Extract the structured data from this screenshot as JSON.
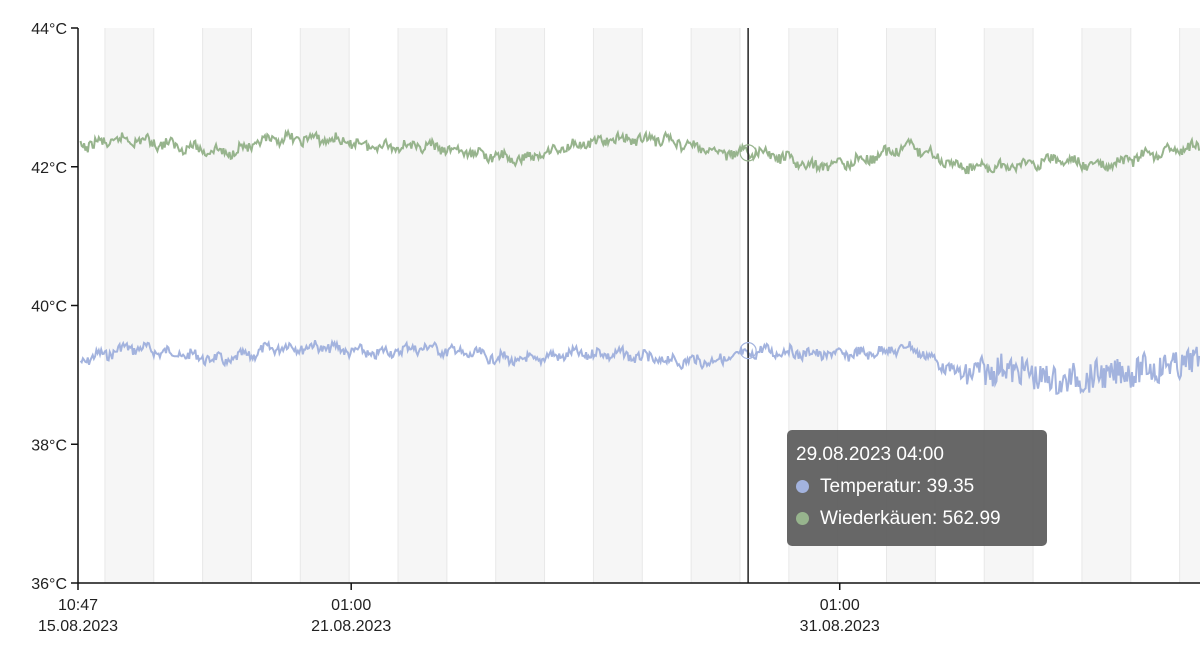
{
  "chart_data": {
    "type": "line",
    "y_unit": "°C",
    "ylim": [
      36,
      44
    ],
    "y_ticks": [
      "36°C",
      "38°C",
      "40°C",
      "42°C",
      "44°C"
    ],
    "y_tick_values": [
      36,
      38,
      40,
      42,
      44
    ],
    "x_range": [
      "2023-08-15 10:47",
      "2023-09-07 10:00"
    ],
    "x_ticks": [
      {
        "time": "2023-08-15 10:47",
        "label_time": "10:47",
        "label_date": "15.08.2023"
      },
      {
        "time": "2023-08-21 01:00",
        "label_time": "01:00",
        "label_date": "21.08.2023"
      },
      {
        "time": "2023-08-31 01:00",
        "label_time": "01:00",
        "label_date": "31.08.2023"
      }
    ],
    "day_shading": "alternating vertical bands, one per day",
    "series": [
      {
        "name": "Temperatur",
        "color": "#a3b3de",
        "x": [
          "2023-08-15",
          "2023-08-16",
          "2023-08-17",
          "2023-08-18",
          "2023-08-19",
          "2023-08-20",
          "2023-08-21",
          "2023-08-22",
          "2023-08-23",
          "2023-08-24",
          "2023-08-25",
          "2023-08-26",
          "2023-08-27",
          "2023-08-28",
          "2023-08-29",
          "2023-08-30",
          "2023-08-31",
          "2023-09-01",
          "2023-09-02",
          "2023-09-03",
          "2023-09-04",
          "2023-09-05",
          "2023-09-06",
          "2023-09-07"
        ],
        "values": [
          39.2,
          39.4,
          39.3,
          39.2,
          39.4,
          39.4,
          39.3,
          39.4,
          39.3,
          39.2,
          39.3,
          39.3,
          39.2,
          39.2,
          39.35,
          39.3,
          39.3,
          39.4,
          39.0,
          39.1,
          38.9,
          39.0,
          39.1,
          39.2
        ]
      },
      {
        "name": "Wiederkäuen",
        "color": "#97b48d",
        "x": [
          "2023-08-15",
          "2023-08-16",
          "2023-08-17",
          "2023-08-18",
          "2023-08-19",
          "2023-08-20",
          "2023-08-21",
          "2023-08-22",
          "2023-08-23",
          "2023-08-24",
          "2023-08-25",
          "2023-08-26",
          "2023-08-27",
          "2023-08-28",
          "2023-08-29",
          "2023-08-30",
          "2023-08-31",
          "2023-09-01",
          "2023-09-02",
          "2023-09-03",
          "2023-09-04",
          "2023-09-05",
          "2023-09-06",
          "2023-09-07"
        ],
        "values": [
          42.3,
          42.4,
          42.3,
          42.2,
          42.4,
          42.4,
          42.3,
          42.3,
          42.2,
          42.1,
          42.3,
          42.4,
          42.4,
          42.2,
          42.2,
          42.0,
          42.1,
          42.3,
          42.0,
          42.0,
          42.1,
          42.0,
          42.2,
          42.3
        ]
      }
    ],
    "crosshair_time": "2023-08-29 04:00",
    "tooltip": {
      "title": "29.08.2023 04:00",
      "rows": [
        {
          "label": "Temperatur: 39.35",
          "color": "#a3b3de"
        },
        {
          "label": "Wiederkäuen: 562.99",
          "color": "#97b48d"
        }
      ]
    }
  }
}
